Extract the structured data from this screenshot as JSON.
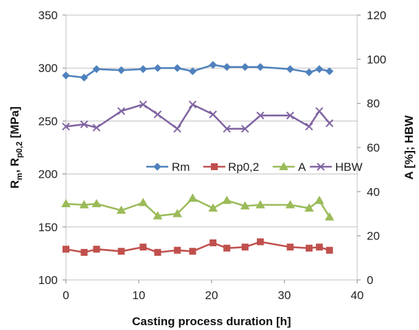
{
  "chart_data": {
    "type": "line",
    "xlabel": "Casting process duration [h]",
    "ylabel_left": "R_m, R_p0,2 [MPa]",
    "ylabel_right": "A [%]; HBW",
    "xlim": [
      0,
      40
    ],
    "ylim_left": [
      100,
      350
    ],
    "ylim_right": [
      0,
      120
    ],
    "x_ticks": [
      "0",
      "10",
      "20",
      "30",
      "40"
    ],
    "y_ticks_left": [
      "100",
      "150",
      "200",
      "250",
      "300",
      "350"
    ],
    "y_ticks_right": [
      "0",
      "20",
      "40",
      "60",
      "80",
      "100",
      "120"
    ],
    "grid": "horizontal",
    "legend_position": "center",
    "series": [
      {
        "name": "Rm",
        "axis": "left",
        "color": "#4F81BD",
        "marker": "diamond",
        "x": [
          0,
          2.5,
          4.2,
          7.6,
          10.6,
          12.6,
          15.3,
          17.4,
          20.2,
          22.1,
          24.6,
          26.7,
          30.8,
          33.4,
          34.8,
          36.2
        ],
        "y": [
          293,
          291,
          299,
          298,
          299,
          300,
          300,
          297,
          303,
          301,
          301,
          301,
          299,
          296,
          299,
          297
        ]
      },
      {
        "name": "Rp0,2",
        "axis": "left",
        "color": "#C0504D",
        "marker": "square",
        "x": [
          0,
          2.5,
          4.2,
          7.6,
          10.6,
          12.6,
          15.3,
          17.4,
          20.2,
          22.1,
          24.6,
          26.7,
          30.8,
          33.4,
          34.8,
          36.2
        ],
        "y": [
          129,
          126,
          129,
          127,
          131,
          126,
          128,
          127,
          135,
          130,
          131,
          136,
          131,
          130,
          131,
          128
        ]
      },
      {
        "name": "A",
        "axis": "right",
        "color": "#9BBB59",
        "marker": "triangle",
        "x": [
          0,
          2.5,
          4.2,
          7.6,
          10.6,
          12.6,
          15.3,
          17.4,
          20.2,
          22.1,
          24.6,
          26.7,
          30.8,
          33.4,
          34.8,
          36.2
        ],
        "y": [
          34.5,
          34.0,
          34.5,
          31.5,
          35.0,
          29.0,
          30.0,
          37.0,
          32.5,
          36.0,
          33.5,
          34.0,
          34.0,
          32.5,
          36.0,
          28.5
        ]
      },
      {
        "name": "HBW",
        "axis": "right",
        "color": "#8064A2",
        "marker": "x",
        "x": [
          0,
          2.5,
          4.2,
          7.6,
          10.6,
          12.6,
          15.3,
          17.4,
          20.2,
          22.1,
          24.6,
          26.7,
          30.8,
          33.4,
          34.8,
          36.2
        ],
        "y": [
          69.5,
          70.5,
          69.0,
          76.5,
          79.5,
          75.0,
          68.5,
          79.5,
          75.0,
          68.5,
          68.5,
          74.5,
          74.5,
          69.5,
          76.5,
          71.0
        ]
      }
    ]
  }
}
